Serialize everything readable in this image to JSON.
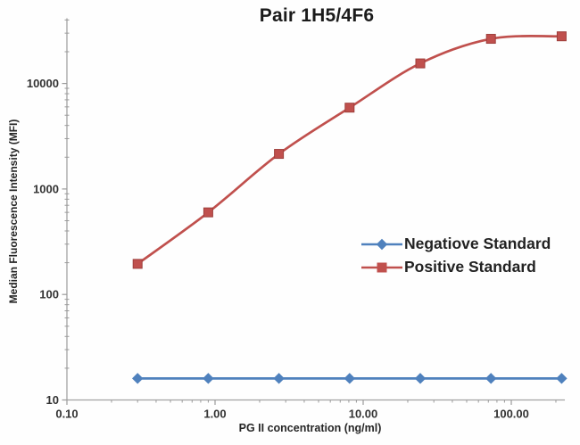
{
  "title": "Pair 1H5/4F6",
  "chart_data": {
    "type": "line",
    "title": "Pair 1H5/4F6",
    "xlabel": "PG II concentration (ng/ml)",
    "ylabel": "Median Fluorescence Intensity (MFI)",
    "x_scale": "log",
    "y_scale": "log",
    "xlim": [
      0.1,
      230
    ],
    "ylim": [
      10,
      41500
    ],
    "grid": false,
    "legend_position": "middle-right",
    "x_major_ticks": [
      0.1,
      1,
      10,
      100
    ],
    "x_tick_labels": [
      "0.10",
      "1.00",
      "10.00",
      "100.00"
    ],
    "y_major_ticks": [
      10,
      100,
      1000,
      10000
    ],
    "y_tick_labels": [
      "10",
      "100",
      "1000",
      "10000"
    ],
    "x": [
      0.3,
      0.9,
      2.7,
      8.1,
      24.3,
      72.9,
      218.7
    ],
    "series": [
      {
        "name": "Negatiove Standard",
        "color": "#4F81BD",
        "marker": "diamond",
        "smooth": false,
        "values": [
          16,
          16,
          16,
          16,
          16,
          16,
          16
        ]
      },
      {
        "name": "Positive Standard",
        "color": "#C0504D",
        "marker": "square",
        "smooth": true,
        "values": [
          195,
          600,
          2150,
          5900,
          15500,
          26500,
          28000
        ]
      }
    ]
  },
  "colors": {
    "axis_line": "#A3A3A3",
    "tick_mark": "#9A9A9A",
    "tick_label": "#333333",
    "title_text": "#1B1B1B",
    "negative_series": "#4F81BD",
    "positive_series": "#C0504D"
  }
}
